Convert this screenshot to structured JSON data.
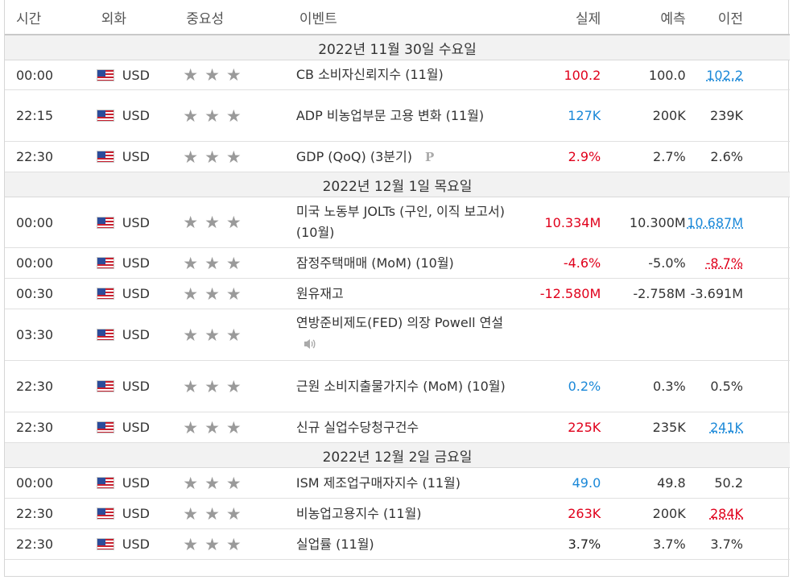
{
  "header": {
    "time": "시간",
    "currency": "외화",
    "importance": "중요성",
    "event": "이벤트",
    "actual": "실제",
    "forecast": "예측",
    "previous": "이전"
  },
  "days": {
    "d1": "2022년 11월 30일 수요일",
    "d2": "2022년 12월 1일 목요일",
    "d3": "2022년 12월 2일 금요일"
  },
  "star_glyph": "★",
  "rows": [
    {
      "time": "00:00",
      "cur": "USD",
      "event": "CB 소비자신뢰지수 (11월)",
      "actual": "100.2",
      "forecast": "100.0",
      "previous": "102.2"
    },
    {
      "time": "22:15",
      "cur": "USD",
      "event": "ADP 비농업부문 고용 변화 (11월)",
      "actual": "127K",
      "forecast": "200K",
      "previous": "239K"
    },
    {
      "time": "22:30",
      "cur": "USD",
      "event": "GDP (QoQ) (3분기)",
      "actual": "2.9%",
      "forecast": "2.7%",
      "previous": "2.6%"
    },
    {
      "time": "00:00",
      "cur": "USD",
      "event": "미국 노동부 JOLTs (구인, 이직 보고서) (10월)",
      "actual": "10.334M",
      "forecast": "10.300M",
      "previous": "10.687M"
    },
    {
      "time": "00:00",
      "cur": "USD",
      "event": "잠정주택매매 (MoM) (10월)",
      "actual": "-4.6%",
      "forecast": "-5.0%",
      "previous": "-8.7%"
    },
    {
      "time": "00:30",
      "cur": "USD",
      "event": "원유재고",
      "actual": "-12.580M",
      "forecast": "-2.758M",
      "previous": "-3.691M"
    },
    {
      "time": "03:30",
      "cur": "USD",
      "event": "연방준비제도(FED) 의장 Powell 연설",
      "actual": "",
      "forecast": "",
      "previous": ""
    },
    {
      "time": "22:30",
      "cur": "USD",
      "event": "근원 소비지출물가지수 (MoM) (10월)",
      "actual": "0.2%",
      "forecast": "0.3%",
      "previous": "0.5%"
    },
    {
      "time": "22:30",
      "cur": "USD",
      "event": "신규 실업수당청구건수",
      "actual": "225K",
      "forecast": "235K",
      "previous": "241K"
    },
    {
      "time": "00:00",
      "cur": "USD",
      "event": "ISM 제조업구매자지수 (11월)",
      "actual": "49.0",
      "forecast": "49.8",
      "previous": "50.2"
    },
    {
      "time": "22:30",
      "cur": "USD",
      "event": "비농업고용지수 (11월)",
      "actual": "263K",
      "forecast": "200K",
      "previous": "284K"
    },
    {
      "time": "22:30",
      "cur": "USD",
      "event": "실업률 (11월)",
      "actual": "3.7%",
      "forecast": "3.7%",
      "previous": "3.7%"
    }
  ],
  "preliminary_mark": "P",
  "colors": {
    "red": "#e0001b",
    "blue": "#1a88d8",
    "star": "#9a9a9a"
  }
}
